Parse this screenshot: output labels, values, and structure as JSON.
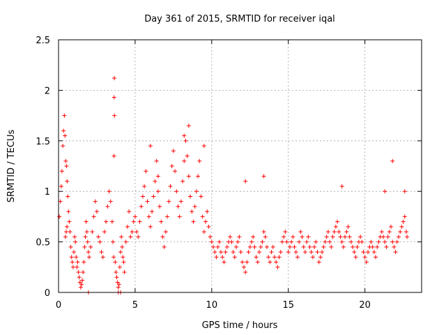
{
  "chart_data": {
    "type": "scatter",
    "title": "Day 361 of 2015, SRMTID for receiver iqal",
    "xlabel": "GPS time / hours",
    "ylabel": "SRMTID / TECUs",
    "xlim": [
      0,
      23.7
    ],
    "ylim": [
      0,
      2.5
    ],
    "xticks": [
      0,
      5,
      10,
      15,
      20
    ],
    "xtick_labels": [
      "0",
      "5",
      "10",
      "15",
      "20"
    ],
    "yticks": [
      0,
      0.5,
      1,
      1.5,
      2,
      2.5
    ],
    "ytick_labels": [
      "0",
      "0.5",
      "1",
      "1.5",
      "2",
      "2.5"
    ],
    "grid": true,
    "marker": "plus",
    "series": [
      {
        "name": "SRMTID",
        "color": "#ff0000",
        "x": [
          0.05,
          0.12,
          0.18,
          0.22,
          0.28,
          0.33,
          0.38,
          0.42,
          0.47,
          0.52,
          0.56,
          0.6,
          0.65,
          0.7,
          0.75,
          0.8,
          0.85,
          0.9,
          0.95,
          1.0,
          1.05,
          1.1,
          1.15,
          1.2,
          1.25,
          1.3,
          1.35,
          1.4,
          1.45,
          1.5,
          1.55,
          1.6,
          1.65,
          1.7,
          1.75,
          1.8,
          1.85,
          1.9,
          1.95,
          2.0,
          2.1,
          2.2,
          2.3,
          2.4,
          2.5,
          2.6,
          2.7,
          2.8,
          2.9,
          3.0,
          3.1,
          3.2,
          3.3,
          3.4,
          3.5,
          3.55,
          3.6,
          3.62,
          3.65,
          3.7,
          3.75,
          3.8,
          3.85,
          3.9,
          3.95,
          4.0,
          4.05,
          4.1,
          4.15,
          4.2,
          4.25,
          4.3,
          4.4,
          4.5,
          4.6,
          4.7,
          4.8,
          4.9,
          5.0,
          5.1,
          5.2,
          5.3,
          5.4,
          5.5,
          5.6,
          5.7,
          5.8,
          5.9,
          6.0,
          6.1,
          6.2,
          6.3,
          6.4,
          6.5,
          6.6,
          6.7,
          6.8,
          6.9,
          7.0,
          7.1,
          7.2,
          7.3,
          7.4,
          7.5,
          7.6,
          7.7,
          7.8,
          7.9,
          8.0,
          8.1,
          8.2,
          8.3,
          8.4,
          8.5,
          8.6,
          8.7,
          8.8,
          8.9,
          9.0,
          9.1,
          9.2,
          9.3,
          9.4,
          9.5,
          9.6,
          9.7,
          9.8,
          9.9,
          10.0,
          10.1,
          10.2,
          10.3,
          10.4,
          10.5,
          10.6,
          10.7,
          10.8,
          10.9,
          11.0,
          11.1,
          11.2,
          11.3,
          11.4,
          11.5,
          11.6,
          11.7,
          11.8,
          11.9,
          12.0,
          12.1,
          12.2,
          12.3,
          12.4,
          12.5,
          12.6,
          12.7,
          12.8,
          12.9,
          13.0,
          13.1,
          13.2,
          13.3,
          13.4,
          13.5,
          13.6,
          13.7,
          13.8,
          13.9,
          14.0,
          14.1,
          14.2,
          14.3,
          14.4,
          14.5,
          14.6,
          14.7,
          14.8,
          14.9,
          15.0,
          15.1,
          15.2,
          15.3,
          15.4,
          15.5,
          15.6,
          15.7,
          15.8,
          15.9,
          16.0,
          16.1,
          16.2,
          16.3,
          16.4,
          16.5,
          16.6,
          16.7,
          16.8,
          16.9,
          17.0,
          17.1,
          17.2,
          17.3,
          17.4,
          17.5,
          17.6,
          17.7,
          17.8,
          17.9,
          18.0,
          18.1,
          18.2,
          18.3,
          18.4,
          18.5,
          18.6,
          18.7,
          18.8,
          18.9,
          19.0,
          19.1,
          19.2,
          19.3,
          19.4,
          19.5,
          19.6,
          19.7,
          19.8,
          19.9,
          20.0,
          20.1,
          20.2,
          20.3,
          20.4,
          20.5,
          20.6,
          20.7,
          20.8,
          20.9,
          21.0,
          21.1,
          21.2,
          21.3,
          21.4,
          21.5,
          21.6,
          21.7,
          21.8,
          21.9,
          22.0,
          22.1,
          22.2,
          22.3,
          22.4,
          22.5,
          22.6,
          22.7,
          22.75,
          3.63,
          3.64,
          0.45,
          0.5,
          0.55,
          8.5,
          8.2,
          6.0,
          6.5,
          9.5,
          12.2,
          13.4,
          18.5,
          21.8,
          21.3,
          22.6,
          1.95,
          3.9,
          4.05
        ],
        "y": [
          0.75,
          0.9,
          1.05,
          1.2,
          1.45,
          1.6,
          1.75,
          1.55,
          1.3,
          1.25,
          1.1,
          0.95,
          0.8,
          0.7,
          0.6,
          0.45,
          0.35,
          0.3,
          0.25,
          0.4,
          0.55,
          0.5,
          0.35,
          0.25,
          0.3,
          0.2,
          0.15,
          0.1,
          0.05,
          0.08,
          0.12,
          0.2,
          0.3,
          0.45,
          0.55,
          0.7,
          0.6,
          0.5,
          0.4,
          0.35,
          0.45,
          0.6,
          0.75,
          0.9,
          0.8,
          0.55,
          0.5,
          0.4,
          0.35,
          0.6,
          0.7,
          0.85,
          1.0,
          0.9,
          0.7,
          0.5,
          0.35,
          1.35,
          1.75,
          0.3,
          0.2,
          0.15,
          0.1,
          0.05,
          0.08,
          0.25,
          0.4,
          0.55,
          0.45,
          0.35,
          0.3,
          0.2,
          0.5,
          0.65,
          0.8,
          0.55,
          0.6,
          0.7,
          0.75,
          0.6,
          0.55,
          0.7,
          0.85,
          0.95,
          1.05,
          1.2,
          0.9,
          0.75,
          0.65,
          0.8,
          0.95,
          1.1,
          1.3,
          1.0,
          0.85,
          0.7,
          0.55,
          0.45,
          0.6,
          0.75,
          0.9,
          1.05,
          1.25,
          1.4,
          1.2,
          1.0,
          0.85,
          0.75,
          0.9,
          1.1,
          1.3,
          1.5,
          1.35,
          1.15,
          0.95,
          0.8,
          0.7,
          0.85,
          1.0,
          1.15,
          1.3,
          0.95,
          0.75,
          0.6,
          0.7,
          0.8,
          0.65,
          0.55,
          0.5,
          0.45,
          0.4,
          0.35,
          0.45,
          0.5,
          0.4,
          0.35,
          0.3,
          0.4,
          0.45,
          0.5,
          0.55,
          0.5,
          0.4,
          0.35,
          0.45,
          0.5,
          0.55,
          0.4,
          0.3,
          0.25,
          0.2,
          0.3,
          0.4,
          0.45,
          0.5,
          0.55,
          0.45,
          0.35,
          0.3,
          0.4,
          0.45,
          0.5,
          0.6,
          0.55,
          0.45,
          0.35,
          0.3,
          0.4,
          0.45,
          0.35,
          0.3,
          0.25,
          0.35,
          0.4,
          0.5,
          0.55,
          0.6,
          0.5,
          0.4,
          0.45,
          0.5,
          0.55,
          0.45,
          0.4,
          0.35,
          0.5,
          0.6,
          0.55,
          0.45,
          0.4,
          0.5,
          0.55,
          0.45,
          0.4,
          0.35,
          0.45,
          0.5,
          0.4,
          0.3,
          0.35,
          0.4,
          0.45,
          0.5,
          0.55,
          0.6,
          0.5,
          0.45,
          0.55,
          0.6,
          0.65,
          0.7,
          0.6,
          0.55,
          0.5,
          0.45,
          0.55,
          0.6,
          0.65,
          0.55,
          0.5,
          0.45,
          0.4,
          0.35,
          0.45,
          0.5,
          0.55,
          0.5,
          0.4,
          0.35,
          0.3,
          0.4,
          0.45,
          0.5,
          0.45,
          0.4,
          0.35,
          0.45,
          0.5,
          0.55,
          0.6,
          0.55,
          0.5,
          0.45,
          0.55,
          0.6,
          0.65,
          0.5,
          0.45,
          0.4,
          0.5,
          0.55,
          0.6,
          0.65,
          0.7,
          0.75,
          0.6,
          0.55,
          1.93,
          2.12,
          0.55,
          0.6,
          0.65,
          1.65,
          1.55,
          1.45,
          1.15,
          1.45,
          1.1,
          1.15,
          1.05,
          1.3,
          1.0,
          1.0,
          0.0,
          0.0,
          0.0
        ]
      }
    ]
  }
}
